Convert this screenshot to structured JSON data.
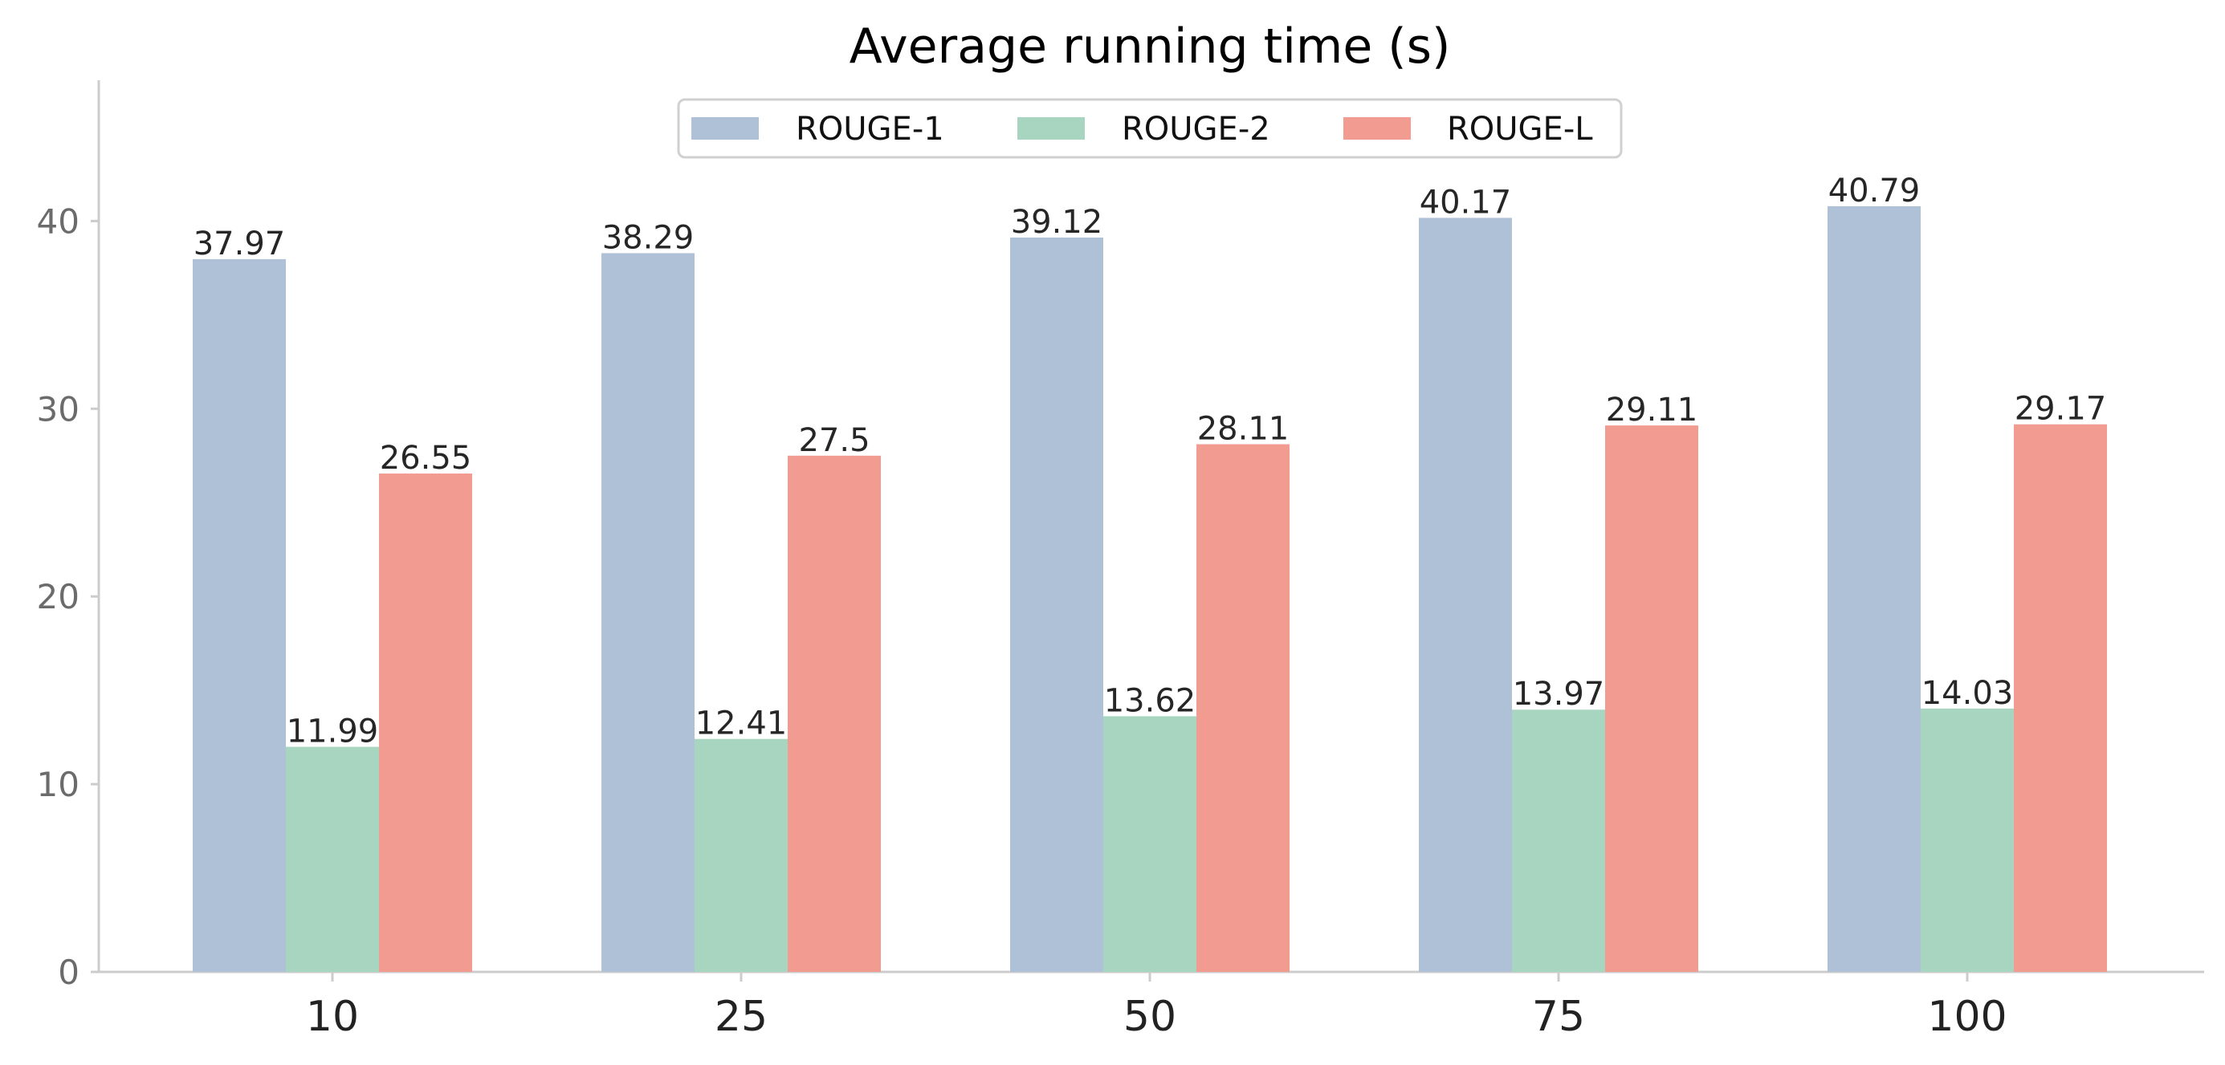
{
  "chart_data": {
    "type": "bar",
    "title": "Average running time (s)",
    "xlabel": "",
    "ylabel": "",
    "categories": [
      "10",
      "25",
      "50",
      "75",
      "100"
    ],
    "series": [
      {
        "name": "ROUGE-1",
        "color": "#afc1d6",
        "values": [
          37.97,
          38.29,
          39.12,
          40.17,
          40.79
        ]
      },
      {
        "name": "ROUGE-2",
        "color": "#a8d5c0",
        "values": [
          11.99,
          12.41,
          13.62,
          13.97,
          14.03
        ]
      },
      {
        "name": "ROUGE-L",
        "color": "#f29b91",
        "values": [
          26.55,
          27.5,
          28.11,
          29.11,
          29.17
        ]
      }
    ],
    "value_labels": [
      [
        "37.97",
        "38.29",
        "39.12",
        "40.17",
        "40.79"
      ],
      [
        "11.99",
        "12.41",
        "13.62",
        "13.97",
        "14.03"
      ],
      [
        "26.55",
        "27.5",
        "28.11",
        "29.11",
        "29.17"
      ]
    ],
    "yticks": [
      0,
      10,
      20,
      30,
      40
    ],
    "ytick_labels": [
      "0",
      "10",
      "20",
      "30",
      "40"
    ],
    "ylim": [
      0,
      47.5
    ],
    "grid": false,
    "legend_position": "top-center",
    "axis_color": "#cccccc"
  }
}
